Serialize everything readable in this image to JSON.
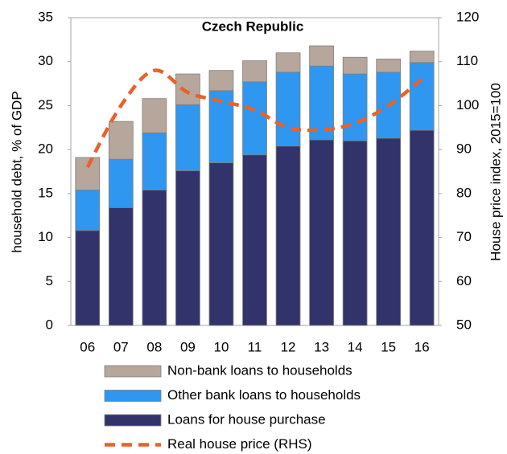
{
  "chart_data": {
    "type": "bar",
    "stacked": true,
    "title": "Czech Republic",
    "categories": [
      "06",
      "07",
      "08",
      "09",
      "10",
      "11",
      "12",
      "13",
      "14",
      "15",
      "16"
    ],
    "y_label": "household debt, % of GDP",
    "y2_label": "House price index, 2015=100",
    "ylim": [
      0,
      35
    ],
    "yticks": [
      0,
      5,
      10,
      15,
      20,
      25,
      30,
      35
    ],
    "y2lim": [
      50,
      120
    ],
    "y2ticks": [
      50,
      60,
      70,
      80,
      90,
      100,
      110,
      120
    ],
    "series": [
      {
        "name": "Loans for house purchase",
        "color": "#33336b",
        "values": [
          10.8,
          13.4,
          15.4,
          17.6,
          18.5,
          19.4,
          20.4,
          21.1,
          21.0,
          21.3,
          22.2
        ]
      },
      {
        "name": "Other bank loans to households",
        "color": "#2f97f0",
        "values": [
          4.6,
          5.5,
          6.5,
          7.5,
          8.2,
          8.3,
          8.4,
          8.4,
          7.6,
          7.5,
          7.7
        ]
      },
      {
        "name": "Non-bank loans to households",
        "color": "#b7a69c",
        "values": [
          3.7,
          4.3,
          3.9,
          3.5,
          2.3,
          2.4,
          2.2,
          2.3,
          1.9,
          1.5,
          1.3
        ]
      },
      {
        "name": "Real house price (RHS)",
        "color": "#e8622a",
        "type": "line",
        "axis": "y2",
        "dashed": true,
        "values": [
          86,
          100,
          108,
          103,
          101,
          99,
          95,
          94.5,
          96,
          100,
          106
        ]
      }
    ]
  }
}
